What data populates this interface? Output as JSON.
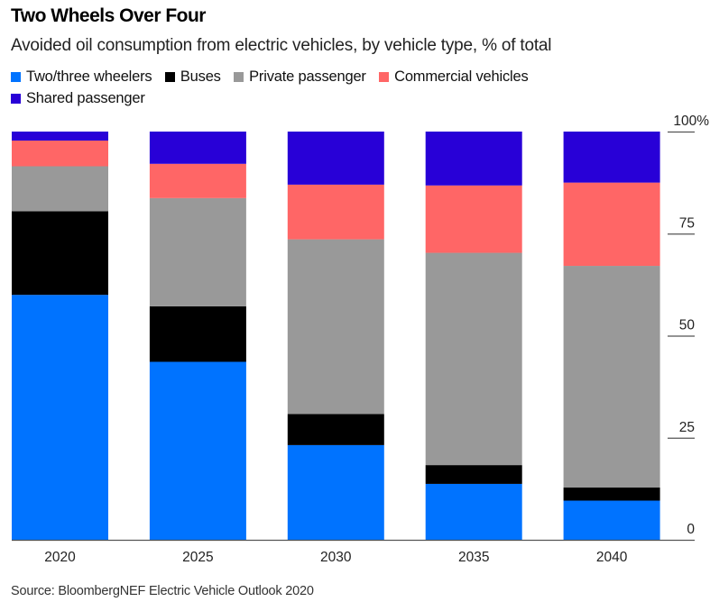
{
  "header": {
    "title": "Two Wheels Over Four",
    "subtitle": "Avoided oil consumption from electric vehicles, by vehicle type, % of total"
  },
  "footer": {
    "source": "Source: BloombergNEF Electric Vehicle Outlook 2020"
  },
  "chart_data": {
    "type": "bar",
    "stacked": true,
    "title": "Two Wheels Over Four",
    "subtitle": "Avoided oil consumption from electric vehicles, by vehicle type, % of total",
    "xlabel": "",
    "ylabel": "% of total",
    "categories": [
      "2020",
      "2025",
      "2030",
      "2035",
      "2040"
    ],
    "ylim": [
      0,
      100
    ],
    "yticks": [
      0,
      25,
      50,
      75,
      100
    ],
    "ytick_labels": [
      "0",
      "25",
      "50",
      "75",
      "100%"
    ],
    "y_axis_position": "right",
    "grid": false,
    "legend_position": "top-left",
    "series": [
      {
        "name": "Two/three wheelers",
        "color": "#0073FF",
        "values": [
          60.0,
          43.6,
          23.2,
          13.7,
          9.6
        ]
      },
      {
        "name": "Buses",
        "color": "#000000",
        "values": [
          20.5,
          13.6,
          7.6,
          4.6,
          3.2
        ]
      },
      {
        "name": "Private passenger",
        "color": "#999999",
        "values": [
          11.0,
          26.5,
          42.8,
          52.0,
          54.3
        ]
      },
      {
        "name": "Commercial vehicles",
        "color": "#FF6666",
        "values": [
          6.3,
          8.4,
          13.4,
          16.5,
          20.4
        ]
      },
      {
        "name": "Shared passenger",
        "color": "#2800D7",
        "values": [
          2.2,
          7.9,
          13.0,
          13.2,
          12.5
        ]
      }
    ],
    "source": "Source: BloombergNEF Electric Vehicle Outlook 2020"
  }
}
